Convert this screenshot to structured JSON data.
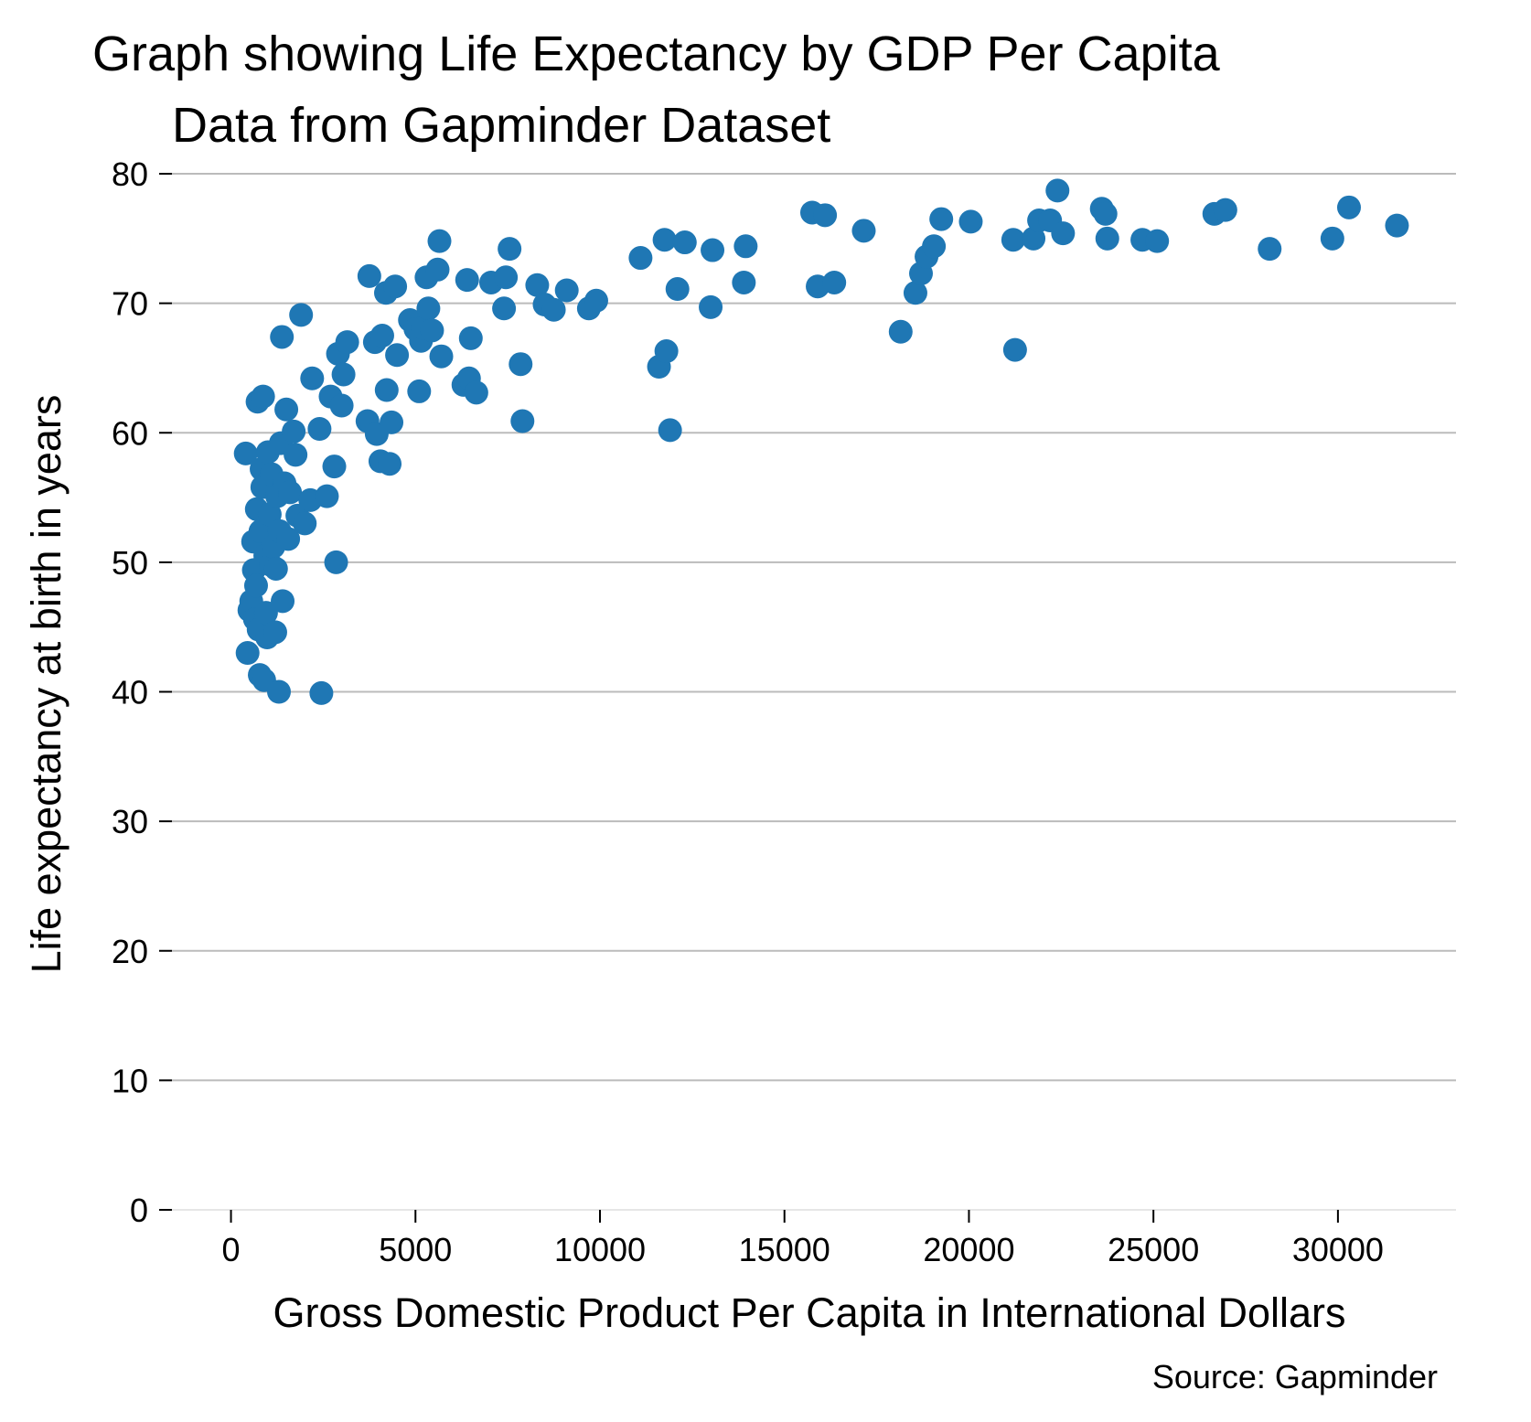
{
  "chart_data": {
    "type": "scatter",
    "title": "Graph showing Life Expectancy by GDP Per Capita",
    "subtitle": "Data from Gapminder Dataset",
    "xlabel": "Gross Domestic Product Per Capita in International Dollars",
    "ylabel": "Life expectancy at birth in years",
    "source": "Source: Gapminder",
    "xlim": [
      -1600,
      33200
    ],
    "ylim": [
      0,
      80
    ],
    "xticks": [
      0,
      5000,
      10000,
      15000,
      20000,
      25000,
      30000
    ],
    "xtick_labels": [
      "0",
      "5000",
      "10000",
      "15000",
      "20000",
      "25000",
      "30000"
    ],
    "yticks": [
      0,
      10,
      20,
      30,
      40,
      50,
      60,
      70,
      80
    ],
    "ytick_labels": [
      "0",
      "10",
      "20",
      "30",
      "40",
      "50",
      "60",
      "70",
      "80"
    ],
    "grid": "horizontal",
    "marker_color": "#1f77b4",
    "grid_color": "#bbbbbb",
    "points": [
      [
        400,
        58.4
      ],
      [
        450,
        43.0
      ],
      [
        500,
        46.3
      ],
      [
        550,
        47.0
      ],
      [
        600,
        51.6
      ],
      [
        620,
        49.4
      ],
      [
        650,
        45.6
      ],
      [
        680,
        48.2
      ],
      [
        700,
        54.1
      ],
      [
        720,
        62.4
      ],
      [
        750,
        44.8
      ],
      [
        780,
        41.3
      ],
      [
        800,
        52.4
      ],
      [
        830,
        57.2
      ],
      [
        850,
        55.8
      ],
      [
        870,
        62.8
      ],
      [
        900,
        40.9
      ],
      [
        930,
        50.5
      ],
      [
        950,
        46.1
      ],
      [
        980,
        44.2
      ],
      [
        1000,
        58.5
      ],
      [
        1050,
        53.7
      ],
      [
        1080,
        49.8
      ],
      [
        1100,
        56.8
      ],
      [
        1150,
        51.2
      ],
      [
        1200,
        44.6
      ],
      [
        1220,
        49.5
      ],
      [
        1250,
        55.1
      ],
      [
        1300,
        40.0
      ],
      [
        1320,
        52.4
      ],
      [
        1350,
        59.2
      ],
      [
        1380,
        67.4
      ],
      [
        1400,
        47.0
      ],
      [
        1450,
        56.1
      ],
      [
        1500,
        61.8
      ],
      [
        1550,
        51.8
      ],
      [
        1600,
        55.4
      ],
      [
        1700,
        60.1
      ],
      [
        1750,
        58.3
      ],
      [
        1800,
        53.6
      ],
      [
        1900,
        69.1
      ],
      [
        2000,
        53.0
      ],
      [
        2150,
        54.8
      ],
      [
        2200,
        64.2
      ],
      [
        2400,
        60.3
      ],
      [
        2450,
        39.9
      ],
      [
        2600,
        55.1
      ],
      [
        2700,
        62.8
      ],
      [
        2800,
        57.4
      ],
      [
        2850,
        50.0
      ],
      [
        2900,
        66.1
      ],
      [
        3000,
        62.1
      ],
      [
        3050,
        64.5
      ],
      [
        3150,
        67.0
      ],
      [
        3700,
        60.9
      ],
      [
        3750,
        72.1
      ],
      [
        3900,
        67.0
      ],
      [
        3950,
        59.9
      ],
      [
        4050,
        57.8
      ],
      [
        4100,
        67.5
      ],
      [
        4200,
        70.8
      ],
      [
        4220,
        63.3
      ],
      [
        4300,
        57.6
      ],
      [
        4350,
        60.8
      ],
      [
        4450,
        71.3
      ],
      [
        4500,
        66.0
      ],
      [
        4850,
        68.7
      ],
      [
        5000,
        68.0
      ],
      [
        5100,
        63.2
      ],
      [
        5150,
        67.1
      ],
      [
        5200,
        68.1
      ],
      [
        5300,
        72.0
      ],
      [
        5350,
        69.6
      ],
      [
        5450,
        67.9
      ],
      [
        5600,
        72.6
      ],
      [
        5650,
        74.8
      ],
      [
        5700,
        65.9
      ],
      [
        6300,
        63.7
      ],
      [
        6400,
        71.8
      ],
      [
        6450,
        64.2
      ],
      [
        6500,
        67.3
      ],
      [
        6650,
        63.1
      ],
      [
        7050,
        71.6
      ],
      [
        7400,
        69.6
      ],
      [
        7450,
        72.0
      ],
      [
        7550,
        74.2
      ],
      [
        7850,
        65.3
      ],
      [
        7900,
        60.9
      ],
      [
        8300,
        71.4
      ],
      [
        8500,
        69.9
      ],
      [
        8750,
        69.5
      ],
      [
        9100,
        71.0
      ],
      [
        9700,
        69.6
      ],
      [
        9900,
        70.2
      ],
      [
        11100,
        73.5
      ],
      [
        11600,
        65.1
      ],
      [
        11750,
        74.9
      ],
      [
        11800,
        66.3
      ],
      [
        11900,
        60.2
      ],
      [
        12100,
        71.1
      ],
      [
        12300,
        74.7
      ],
      [
        13000,
        69.7
      ],
      [
        13050,
        74.1
      ],
      [
        13900,
        71.6
      ],
      [
        13950,
        74.4
      ],
      [
        15750,
        77.0
      ],
      [
        15900,
        71.3
      ],
      [
        16100,
        76.8
      ],
      [
        16350,
        71.6
      ],
      [
        17150,
        75.6
      ],
      [
        18150,
        67.8
      ],
      [
        18550,
        70.8
      ],
      [
        18700,
        72.3
      ],
      [
        18850,
        73.6
      ],
      [
        19050,
        74.4
      ],
      [
        19250,
        76.5
      ],
      [
        20050,
        76.3
      ],
      [
        21200,
        74.9
      ],
      [
        21250,
        66.4
      ],
      [
        21750,
        75.0
      ],
      [
        21900,
        76.4
      ],
      [
        22200,
        76.4
      ],
      [
        22400,
        78.7
      ],
      [
        22550,
        75.4
      ],
      [
        23600,
        77.3
      ],
      [
        23700,
        76.9
      ],
      [
        23750,
        75.0
      ],
      [
        24700,
        74.9
      ],
      [
        25100,
        74.8
      ],
      [
        26650,
        76.9
      ],
      [
        26950,
        77.2
      ],
      [
        28150,
        74.2
      ],
      [
        29850,
        75.0
      ],
      [
        30300,
        77.4
      ],
      [
        31600,
        76.0
      ]
    ]
  }
}
